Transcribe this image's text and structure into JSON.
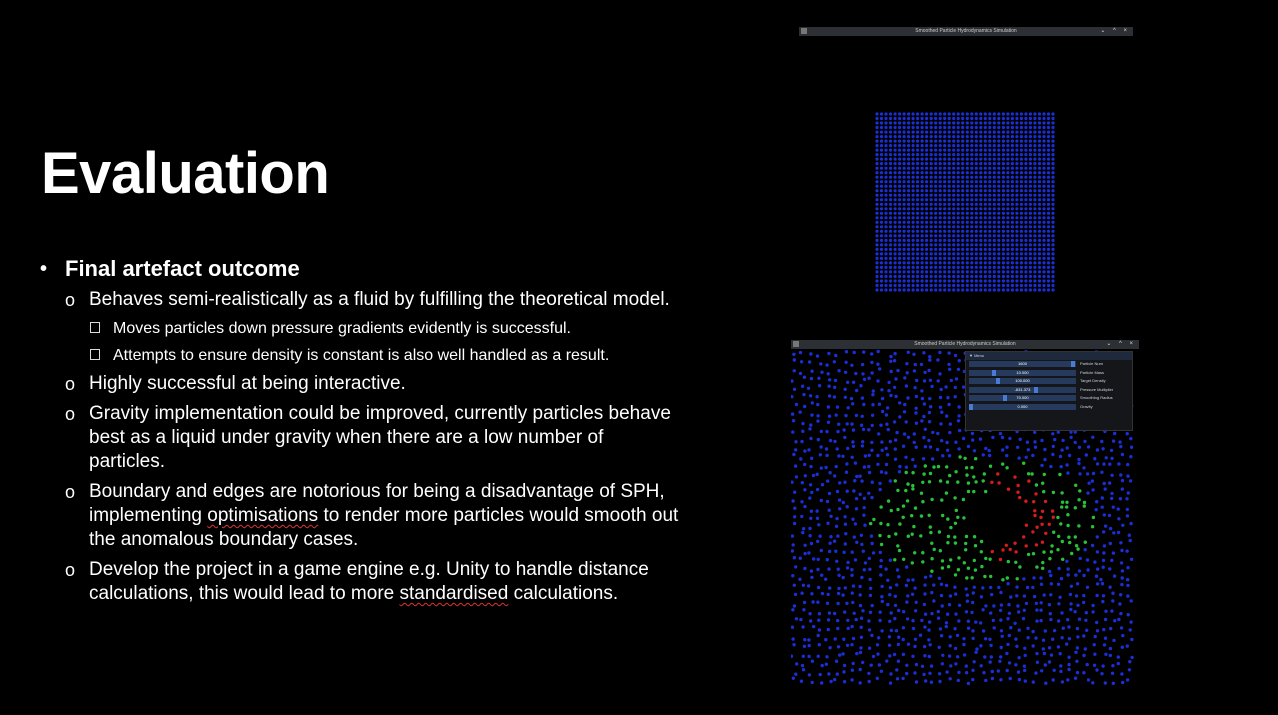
{
  "slide": {
    "title": "Evaluation",
    "bullets": [
      {
        "text": "Final artefact outcome"
      }
    ],
    "sub_items": [
      {
        "marker": "o",
        "text": "Behaves semi-realistically as a fluid by fulfilling the theoretical model."
      },
      {
        "marker": "o",
        "text": "Highly successful at being interactive."
      },
      {
        "marker": "o",
        "text": "Gravity implementation could be improved, currently particles behave best as a liquid under gravity when there are a low number of particles."
      },
      {
        "marker": "o",
        "text_before": "Boundary and edges are notorious for being a disadvantage of SPH, implementing ",
        "text_underlined": "optimisations",
        "text_after": " to render more particles would smooth out the anomalous boundary cases."
      },
      {
        "marker": "o",
        "text_before": "Develop the project in a game engine e.g. Unity to handle distance calculations, this would lead to more ",
        "text_underlined": "standardised",
        "text_after": " calculations."
      }
    ],
    "sub_sub_items": [
      {
        "text": "Moves particles down pressure gradients evidently is successful."
      },
      {
        "text": "Attempts to ensure density is constant is also well handled as a result."
      }
    ],
    "bullet_marker": "•"
  },
  "window_top": {
    "title": "Smoothed Particle Hydrodynamics Simulation",
    "controls": "⌄ ^ ×",
    "particle_color": "#1a2fd6"
  },
  "window_bottom": {
    "title": "Smoothed Particle Hydrodynamics Simulation",
    "controls": "⌄ ^ ×",
    "menu": {
      "header": "▼ Menu",
      "rows": [
        {
          "value": "1600",
          "label": "Particle Num",
          "fill": 0.99
        },
        {
          "value": "10.000",
          "label": "Particle Mass",
          "fill": 0.22
        },
        {
          "value": "100.000",
          "label": "Target Density",
          "fill": 0.26
        },
        {
          "value": "-631.373",
          "label": "Pressure Multiplier",
          "fill": 0.63
        },
        {
          "value": "70.000",
          "label": "Smoothing Radius",
          "fill": 0.33
        },
        {
          "value": "0.000",
          "label": "Gravity",
          "fill": 0.0
        }
      ]
    },
    "colors": {
      "low": "#1b2fd8",
      "mid": "#28c23a",
      "high": "#d81b1b"
    }
  }
}
